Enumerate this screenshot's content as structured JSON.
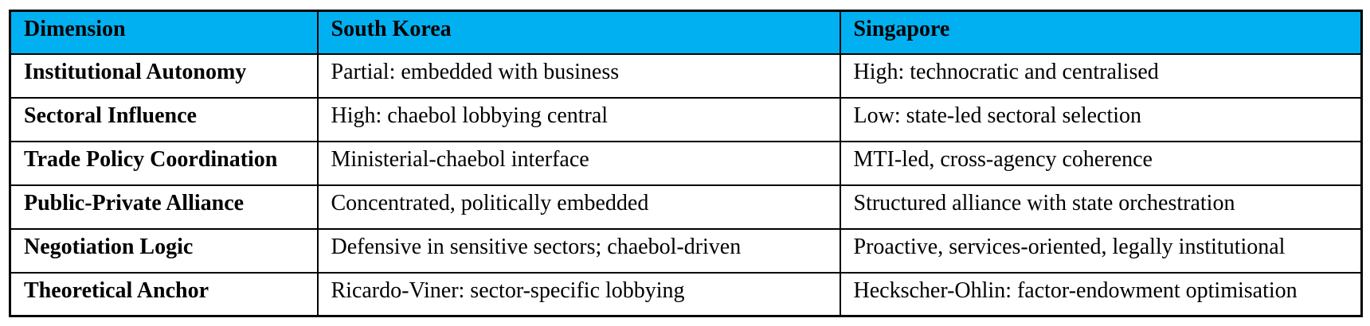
{
  "colors": {
    "header_bg": "#00B0F0",
    "border": "#000000",
    "text": "#000000",
    "page_bg": "#FFFFFF"
  },
  "table": {
    "header": {
      "columns": [
        "Dimension",
        "South Korea",
        "Singapore"
      ]
    },
    "rows": [
      {
        "dimension": "Institutional Autonomy",
        "south_korea": "Partial: embedded with business",
        "singapore": "High: technocratic and centralised"
      },
      {
        "dimension": "Sectoral Influence",
        "south_korea": "High: chaebol lobbying central",
        "singapore": "Low: state-led sectoral selection"
      },
      {
        "dimension": "Trade Policy Coordination",
        "south_korea": "Ministerial-chaebol interface",
        "singapore": "MTI-led, cross-agency coherence"
      },
      {
        "dimension": "Public-Private Alliance",
        "south_korea": "Concentrated, politically embedded",
        "singapore": "Structured alliance with state orchestration"
      },
      {
        "dimension": "Negotiation Logic",
        "south_korea": "Defensive in sensitive sectors; chaebol-driven",
        "singapore": "Proactive, services-oriented, legally institutional"
      },
      {
        "dimension": "Theoretical Anchor",
        "south_korea": "Ricardo-Viner: sector-specific lobbying",
        "singapore": "Heckscher-Ohlin: factor-endowment optimisation"
      }
    ]
  }
}
